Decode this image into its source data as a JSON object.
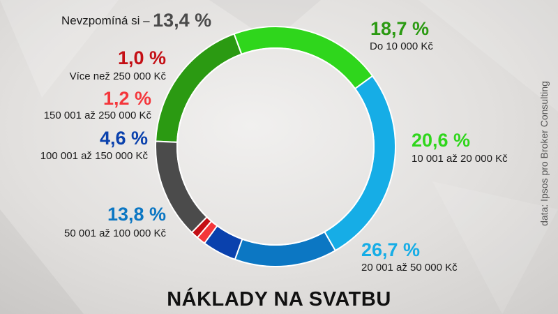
{
  "chart_data": {
    "type": "pie",
    "title": "NÁKLADY NA SVATBU",
    "source": "data: Ipsos pro Broker Consulting",
    "slices": [
      {
        "label": "Do 10 000 Kč",
        "value": 18.7,
        "pct_label": "18,7 %",
        "color": "#2b9a12"
      },
      {
        "label": "10 001 až 20 000 Kč",
        "value": 20.6,
        "pct_label": "20,6 %",
        "color": "#2fd61c"
      },
      {
        "label": "20 001 až 50 000 Kč",
        "value": 26.7,
        "pct_label": "26,7 %",
        "color": "#16ade6"
      },
      {
        "label": "50 001 až 100 000 Kč",
        "value": 13.8,
        "pct_label": "13,8 %",
        "color": "#0c77c3"
      },
      {
        "label": "100 001 až 150 000 Kč",
        "value": 4.6,
        "pct_label": "4,6 %",
        "color": "#0a41ad"
      },
      {
        "label": "150 001 až 250 000 Kč",
        "value": 1.2,
        "pct_label": "1,2 %",
        "color": "#f4363b"
      },
      {
        "label": "Více než 250 000 Kč",
        "value": 1.0,
        "pct_label": "1,0 %",
        "color": "#c40f15"
      },
      {
        "label": "Nevzpomíná si –",
        "value": 13.4,
        "pct_label": "13,4 %",
        "color": "#4b4b4b"
      }
    ]
  }
}
